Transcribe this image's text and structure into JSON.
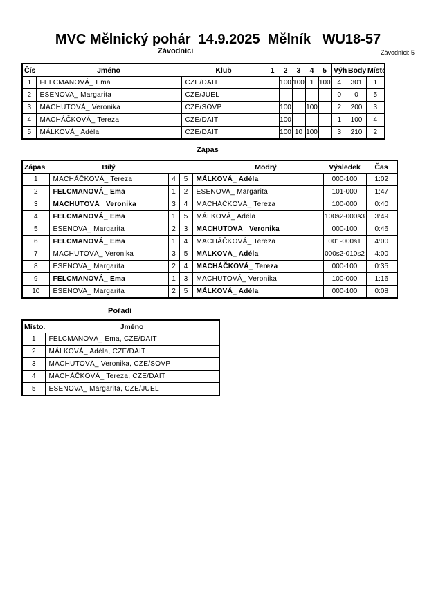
{
  "title": "MVC Mělnický pohár  14.9.2025  Mělník   WU18-57",
  "competitors_heading": "Závodníci",
  "competitors_count": "Závodníci: 5",
  "competitors": {
    "headers": [
      "Číslo",
      "Jméno",
      "Klub",
      "1",
      "2",
      "3",
      "4",
      "5",
      "Výhra",
      "Body",
      "Místo."
    ],
    "rows": [
      {
        "no": "1",
        "name": "FELCMANOVÁ_ Ema",
        "club": "CZE/DAIT",
        "s": [
          "",
          "100",
          "100",
          "1",
          "100"
        ],
        "wins": "4",
        "points": "301",
        "place": "1"
      },
      {
        "no": "2",
        "name": "ESENOVA_ Margarita",
        "club": "CZE/JUEL",
        "s": [
          "",
          "",
          "",
          "",
          ""
        ],
        "wins": "0",
        "points": "0",
        "place": "5"
      },
      {
        "no": "3",
        "name": "MACHUTOVÁ_ Veronika",
        "club": "CZE/SOVP",
        "s": [
          "",
          "100",
          "",
          "100",
          ""
        ],
        "wins": "2",
        "points": "200",
        "place": "3"
      },
      {
        "no": "4",
        "name": "MACHÁČKOVÁ_ Tereza",
        "club": "CZE/DAIT",
        "s": [
          "",
          "100",
          "",
          "",
          ""
        ],
        "wins": "1",
        "points": "100",
        "place": "4"
      },
      {
        "no": "5",
        "name": "MÁLKOVÁ_ Adéla",
        "club": "CZE/DAIT",
        "s": [
          "",
          "100",
          "10",
          "100",
          ""
        ],
        "wins": "3",
        "points": "210",
        "place": "2"
      }
    ]
  },
  "matches_heading": "Zápas",
  "matches": {
    "headers": [
      "Zápas",
      "Bílý",
      "Modrý",
      "Výsledek",
      "Čas"
    ],
    "rows": [
      {
        "no": "1",
        "white": "MACHÁČKOVÁ_ Tereza",
        "wn": "4",
        "bn": "5",
        "blue": "MÁLKOVÁ_ Adéla",
        "result": "000-100",
        "time": "1:02",
        "winner": "blue"
      },
      {
        "no": "2",
        "white": "FELCMANOVÁ_ Ema",
        "wn": "1",
        "bn": "2",
        "blue": "ESENOVA_ Margarita",
        "result": "101-000",
        "time": "1:47",
        "winner": "white"
      },
      {
        "no": "3",
        "white": "MACHUTOVÁ_ Veronika",
        "wn": "3",
        "bn": "4",
        "blue": "MACHÁČKOVÁ_ Tereza",
        "result": "100-000",
        "time": "0:40",
        "winner": "white"
      },
      {
        "no": "4",
        "white": "FELCMANOVÁ_ Ema",
        "wn": "1",
        "bn": "5",
        "blue": "MÁLKOVÁ_ Adéla",
        "result": "100s2-000s3",
        "time": "3:49",
        "winner": "white"
      },
      {
        "no": "5",
        "white": "ESENOVA_ Margarita",
        "wn": "2",
        "bn": "3",
        "blue": "MACHUTOVÁ_ Veronika",
        "result": "000-100",
        "time": "0:46",
        "winner": "blue"
      },
      {
        "no": "6",
        "white": "FELCMANOVÁ_ Ema",
        "wn": "1",
        "bn": "4",
        "blue": "MACHÁČKOVÁ_ Tereza",
        "result": "001-000s1",
        "time": "4:00",
        "winner": "white"
      },
      {
        "no": "7",
        "white": "MACHUTOVÁ_ Veronika",
        "wn": "3",
        "bn": "5",
        "blue": "MÁLKOVÁ_ Adéla",
        "result": "000s2-010s2",
        "time": "4:00",
        "winner": "blue"
      },
      {
        "no": "8",
        "white": "ESENOVA_ Margarita",
        "wn": "2",
        "bn": "4",
        "blue": "MACHÁČKOVÁ_ Tereza",
        "result": "000-100",
        "time": "0:35",
        "winner": "blue"
      },
      {
        "no": "9",
        "white": "FELCMANOVÁ_ Ema",
        "wn": "1",
        "bn": "3",
        "blue": "MACHUTOVÁ_ Veronika",
        "result": "100-000",
        "time": "1:16",
        "winner": "white"
      },
      {
        "no": "10",
        "white": "ESENOVA_ Margarita",
        "wn": "2",
        "bn": "5",
        "blue": "MÁLKOVÁ_ Adéla",
        "result": "000-100",
        "time": "0:08",
        "winner": "blue"
      }
    ]
  },
  "ranking_heading": "Pořadí",
  "ranking": {
    "headers": [
      "Místo.",
      "Jméno"
    ],
    "rows": [
      {
        "place": "1",
        "name": "FELCMANOVÁ_ Ema, CZE/DAIT"
      },
      {
        "place": "2",
        "name": "MÁLKOVÁ_ Adéla, CZE/DAIT"
      },
      {
        "place": "3",
        "name": "MACHUTOVÁ_ Veronika, CZE/SOVP"
      },
      {
        "place": "4",
        "name": "MACHÁČKOVÁ_ Tereza, CZE/DAIT"
      },
      {
        "place": "5",
        "name": "ESENOVA_ Margarita, CZE/JUEL"
      }
    ]
  }
}
